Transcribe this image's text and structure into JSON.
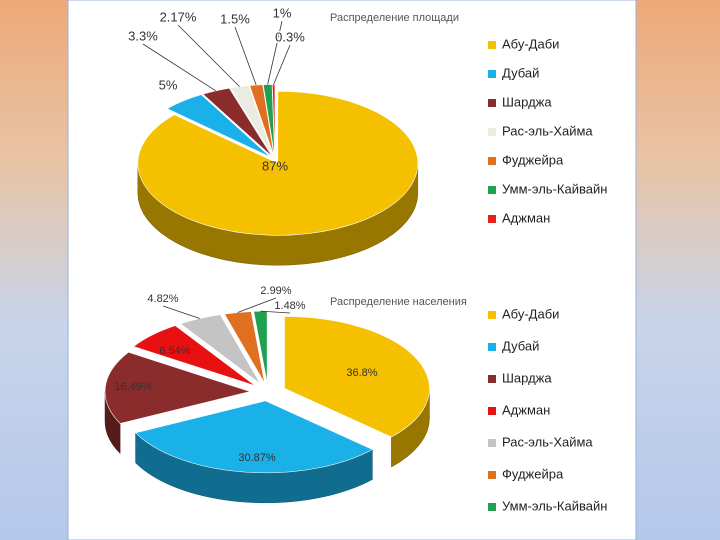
{
  "chart_data": [
    {
      "type": "pie",
      "title": "Распределение площади",
      "categories": [
        "Абу-Даби",
        "Дубай",
        "Шарджа",
        "Рас-эль-Хайма",
        "Фуджейра",
        "Умм-эль-Кайвайн",
        "Аджман"
      ],
      "values": [
        87,
        5,
        3.3,
        2.17,
        1.5,
        1,
        0.3
      ],
      "value_labels": [
        "87%",
        "5%",
        "3.3%",
        "2.17%",
        "1.5%",
        "1%",
        "0.3%"
      ],
      "colors": [
        "#f5c000",
        "#1ab0e8",
        "#8b2c2c",
        "#ecebe2",
        "#e07020",
        "#20a050",
        "#e82020"
      ],
      "legend": "right"
    },
    {
      "type": "pie",
      "title": "Распределение населения",
      "categories": [
        "Абу-Даби",
        "Дубай",
        "Шарджа",
        "Аджман",
        "Рас-эль-Хайма",
        "Фуджейра",
        "Умм-эль-Кайвайн"
      ],
      "values": [
        36.8,
        30.87,
        16.49,
        6.54,
        4.82,
        2.99,
        1.48
      ],
      "value_labels": [
        "36.8%",
        "30.87%",
        "16.49%",
        "6.54%",
        "4.82%",
        "2.99%",
        "1.48%"
      ],
      "colors": [
        "#f5c000",
        "#1ab0e8",
        "#8b2c2c",
        "#e81010",
        "#c4c4c4",
        "#e07020",
        "#20a050"
      ],
      "legend": "right"
    }
  ]
}
